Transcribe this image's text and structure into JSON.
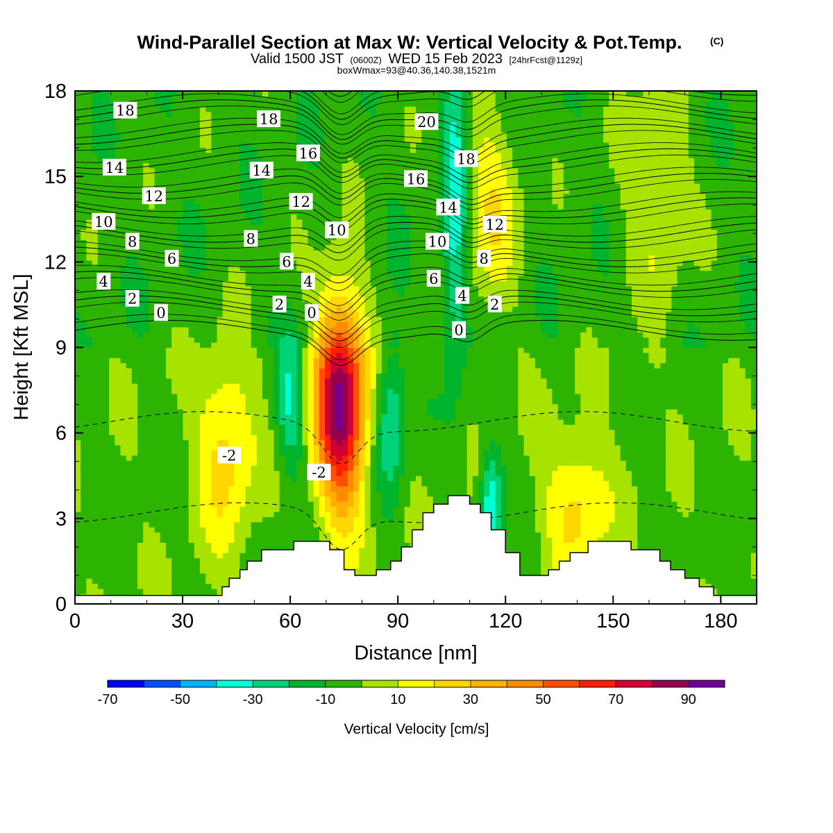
{
  "header": {
    "title": "Wind-Parallel Section at Max W: Vertical Velocity & Pot.Temp.",
    "copyright": "(C)",
    "valid_prefix": "Valid 1500 JST",
    "valid_utc": "(0600Z)",
    "valid_date": "WED 15 Feb 2023",
    "forecast": "[24hrFcst@1129z]",
    "boxwmax": "boxWmax=93@40.36,140.38,1521m"
  },
  "colors": {
    "levels": [
      "#0000ee",
      "#0050ff",
      "#00b4ff",
      "#00ffd2",
      "#00d27a",
      "#00b42d",
      "#2db400",
      "#a8e300",
      "#ffff00",
      "#ffd700",
      "#ffb000",
      "#ff8c00",
      "#ff5000",
      "#ff1e00",
      "#d20032",
      "#960050",
      "#6e0096"
    ],
    "terrain": "#ffffff",
    "contour": "#000000"
  },
  "chart_data": {
    "type": "heatmap",
    "title": "Wind-Parallel Section at Max W: Vertical Velocity & Pot.Temp.",
    "xlabel": "Distance [nm]",
    "ylabel": "Height [Kft MSL]",
    "xlim": [
      0,
      190
    ],
    "ylim": [
      0,
      18
    ],
    "xticks": [
      "0",
      "30",
      "60",
      "90",
      "120",
      "150",
      "180"
    ],
    "yticks": [
      "0",
      "3",
      "6",
      "9",
      "12",
      "15",
      "18"
    ],
    "field": "Vertical Velocity",
    "colorbar": {
      "label": "Vertical Velocity [cm/s]",
      "ticks": [
        "-70",
        "-50",
        "-30",
        "-10",
        "10",
        "30",
        "50",
        "70",
        "90"
      ],
      "bounds": [
        -70,
        100
      ],
      "step": 10
    },
    "features": [
      {
        "kind": "updraft",
        "x": 74,
        "z": 7,
        "w_max": 93,
        "half_width_nm": 7,
        "half_height_kft": 3.8
      },
      {
        "kind": "updraft",
        "x": 42,
        "z": 5.5,
        "w_max": 28,
        "half_width_nm": 8,
        "half_height_kft": 3.5
      },
      {
        "kind": "updraft",
        "x": 140,
        "z": 3.5,
        "w_max": 27,
        "half_width_nm": 9,
        "half_height_kft": 2.5
      },
      {
        "kind": "updraft",
        "x": 116,
        "z": 14,
        "w_max": 24,
        "half_width_nm": 8,
        "half_height_kft": 3.5
      },
      {
        "kind": "updraft",
        "x": 162,
        "z": 14.5,
        "w_max": 18,
        "half_width_nm": 9,
        "half_height_kft": 4
      },
      {
        "kind": "downdraft",
        "x": 106,
        "z": 14,
        "w_max": -32,
        "half_width_nm": 3.5,
        "half_height_kft": 6
      },
      {
        "kind": "downdraft",
        "x": 116,
        "z": 3.5,
        "w_max": -38,
        "half_width_nm": 3,
        "half_height_kft": 1.8
      },
      {
        "kind": "downdraft",
        "x": 60,
        "z": 7,
        "w_max": -28,
        "half_width_nm": 4,
        "half_height_kft": 2.5
      },
      {
        "kind": "downdraft",
        "x": 88,
        "z": 6.5,
        "w_max": -26,
        "half_width_nm": 4,
        "half_height_kft": 3
      }
    ],
    "terrain": {
      "x_nm": [
        0,
        40,
        41,
        43,
        46,
        48,
        52,
        57,
        61,
        67,
        71,
        75,
        78,
        84,
        88,
        91,
        94,
        97,
        100,
        104,
        110,
        113,
        116,
        120,
        124,
        128,
        132,
        135,
        138,
        143,
        148,
        155,
        160,
        163,
        166,
        170,
        174,
        178,
        180,
        190
      ],
      "height_kft": [
        0.3,
        0.3,
        0.6,
        0.9,
        1.2,
        1.5,
        1.9,
        1.9,
        2.2,
        2.2,
        1.9,
        1.2,
        1.0,
        1.2,
        1.5,
        2.0,
        2.6,
        3.2,
        3.5,
        3.8,
        3.5,
        3.2,
        2.6,
        1.8,
        1.0,
        1.0,
        1.2,
        1.5,
        1.8,
        2.2,
        2.2,
        1.9,
        1.9,
        1.5,
        1.2,
        0.9,
        0.6,
        0.3,
        0.3,
        0.3
      ]
    },
    "temperature_contours": {
      "field": "Pot.Temp.",
      "line_values": [
        -4,
        -2,
        0,
        2,
        4,
        6,
        8,
        10,
        12,
        14,
        16,
        18,
        20,
        22
      ],
      "labels": [
        {
          "text": "18",
          "x": 14,
          "z": 17.3
        },
        {
          "text": "14",
          "x": 11,
          "z": 15.3
        },
        {
          "text": "12",
          "x": 22,
          "z": 14.3
        },
        {
          "text": "10",
          "x": 8,
          "z": 13.4
        },
        {
          "text": "8",
          "x": 16,
          "z": 12.7
        },
        {
          "text": "6",
          "x": 27,
          "z": 12.1
        },
        {
          "text": "4",
          "x": 8,
          "z": 11.3
        },
        {
          "text": "2",
          "x": 16,
          "z": 10.7
        },
        {
          "text": "0",
          "x": 24,
          "z": 10.2
        },
        {
          "text": "18",
          "x": 54,
          "z": 17.0
        },
        {
          "text": "14",
          "x": 52,
          "z": 15.2
        },
        {
          "text": "16",
          "x": 65,
          "z": 15.8
        },
        {
          "text": "12",
          "x": 63,
          "z": 14.1
        },
        {
          "text": "10",
          "x": 73,
          "z": 13.1
        },
        {
          "text": "8",
          "x": 49,
          "z": 12.8
        },
        {
          "text": "6",
          "x": 59,
          "z": 12.0
        },
        {
          "text": "4",
          "x": 65,
          "z": 11.3
        },
        {
          "text": "2",
          "x": 57,
          "z": 10.5
        },
        {
          "text": "0",
          "x": 66,
          "z": 10.2
        },
        {
          "text": "20",
          "x": 98,
          "z": 16.9
        },
        {
          "text": "18",
          "x": 109,
          "z": 15.6
        },
        {
          "text": "16",
          "x": 95,
          "z": 14.9
        },
        {
          "text": "14",
          "x": 104,
          "z": 13.9
        },
        {
          "text": "12",
          "x": 117,
          "z": 13.3
        },
        {
          "text": "10",
          "x": 101,
          "z": 12.7
        },
        {
          "text": "8",
          "x": 114,
          "z": 12.1
        },
        {
          "text": "6",
          "x": 100,
          "z": 11.4
        },
        {
          "text": "4",
          "x": 108,
          "z": 10.8
        },
        {
          "text": "2",
          "x": 117,
          "z": 10.5
        },
        {
          "text": "0",
          "x": 107,
          "z": 9.6
        },
        {
          "text": "-2",
          "x": 43,
          "z": 5.2
        },
        {
          "text": "-2",
          "x": 68,
          "z": 4.6
        }
      ]
    }
  }
}
